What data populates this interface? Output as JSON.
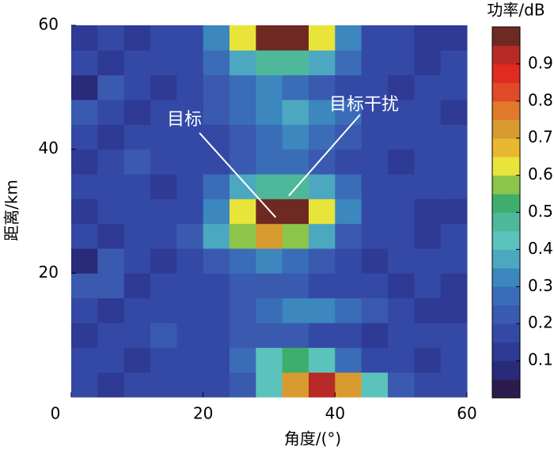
{
  "chart_data": {
    "type": "heatmap",
    "xlabel": "角度/(°)",
    "ylabel": "距离/km",
    "colorbar_label": "功率/dB",
    "xlim": [
      0,
      60
    ],
    "ylim": [
      0,
      60
    ],
    "xticks": [
      0,
      20,
      40,
      60
    ],
    "yticks": [
      20,
      40,
      60
    ],
    "clim": [
      0,
      1
    ],
    "cticks": [
      0.1,
      0.2,
      0.3,
      0.4,
      0.5,
      0.6,
      0.7,
      0.8,
      0.9
    ],
    "colormap": [
      "#2d1b4e",
      "#2a2a7a",
      "#2e3a94",
      "#3449a6",
      "#3a5ab0",
      "#3b6cb8",
      "#3b87be",
      "#4ca8c0",
      "#5cc2bc",
      "#4fb89a",
      "#3fae6c",
      "#8cc54a",
      "#e8e43a",
      "#e8b830",
      "#d99a30",
      "#e07a2a",
      "#e04a28",
      "#e02a22",
      "#b82a25",
      "#6e2a22"
    ],
    "x": [
      2,
      6,
      10,
      14,
      18,
      22,
      26,
      30,
      34,
      38,
      42,
      46,
      50,
      54,
      58
    ],
    "y": [
      2,
      6,
      10,
      14,
      18,
      22,
      26,
      30,
      34,
      38,
      42,
      46,
      50,
      54,
      58
    ],
    "z": [
      [
        0.15,
        0.12,
        0.15,
        0.15,
        0.15,
        0.16,
        0.23,
        0.43,
        0.73,
        0.9,
        0.73,
        0.43,
        0.23,
        0.16,
        0.15
      ],
      [
        0.18,
        0.15,
        0.12,
        0.15,
        0.15,
        0.19,
        0.28,
        0.42,
        0.5,
        0.42,
        0.28,
        0.19,
        0.15,
        0.12,
        0.15
      ],
      [
        0.12,
        0.15,
        0.18,
        0.2,
        0.18,
        0.15,
        0.2,
        0.22,
        0.2,
        0.18,
        0.15,
        0.12,
        0.15,
        0.18,
        0.15
      ],
      [
        0.15,
        0.1,
        0.15,
        0.15,
        0.18,
        0.15,
        0.2,
        0.27,
        0.34,
        0.34,
        0.27,
        0.2,
        0.15,
        0.1,
        0.12
      ],
      [
        0.2,
        0.22,
        0.12,
        0.15,
        0.15,
        0.18,
        0.2,
        0.22,
        0.2,
        0.18,
        0.15,
        0.15,
        0.12,
        0.15,
        0.1
      ],
      [
        0.05,
        0.2,
        0.15,
        0.1,
        0.15,
        0.2,
        0.26,
        0.3,
        0.26,
        0.2,
        0.15,
        0.12,
        0.15,
        0.18,
        0.15
      ],
      [
        0.15,
        0.12,
        0.15,
        0.16,
        0.2,
        0.35,
        0.58,
        0.7,
        0.58,
        0.35,
        0.2,
        0.16,
        0.15,
        0.12,
        0.15
      ],
      [
        0.12,
        0.15,
        0.15,
        0.15,
        0.16,
        0.33,
        0.63,
        0.95,
        0.95,
        0.63,
        0.33,
        0.19,
        0.15,
        0.12,
        0.1
      ],
      [
        0.15,
        0.18,
        0.15,
        0.12,
        0.18,
        0.28,
        0.38,
        0.45,
        0.45,
        0.38,
        0.28,
        0.18,
        0.15,
        0.15,
        0.18
      ],
      [
        0.12,
        0.15,
        0.2,
        0.15,
        0.15,
        0.18,
        0.22,
        0.25,
        0.25,
        0.22,
        0.18,
        0.15,
        0.1,
        0.15,
        0.15
      ],
      [
        0.15,
        0.12,
        0.15,
        0.15,
        0.15,
        0.18,
        0.22,
        0.27,
        0.3,
        0.27,
        0.22,
        0.15,
        0.15,
        0.18,
        0.15
      ],
      [
        0.2,
        0.15,
        0.12,
        0.15,
        0.18,
        0.2,
        0.25,
        0.32,
        0.35,
        0.32,
        0.25,
        0.18,
        0.15,
        0.15,
        0.12
      ],
      [
        0.05,
        0.2,
        0.15,
        0.12,
        0.15,
        0.2,
        0.25,
        0.3,
        0.28,
        0.22,
        0.18,
        0.15,
        0.12,
        0.15,
        0.15
      ],
      [
        0.15,
        0.12,
        0.15,
        0.18,
        0.18,
        0.25,
        0.35,
        0.45,
        0.45,
        0.35,
        0.25,
        0.18,
        0.15,
        0.12,
        0.15
      ],
      [
        0.1,
        0.15,
        0.12,
        0.15,
        0.16,
        0.3,
        0.62,
        0.96,
        0.96,
        0.62,
        0.3,
        0.18,
        0.15,
        0.12,
        0.1
      ]
    ],
    "annotations": [
      {
        "text": "目标",
        "xy": [
          31,
          29
        ]
      },
      {
        "text": "目标干扰",
        "xy": [
          33,
          32.5
        ]
      }
    ]
  }
}
